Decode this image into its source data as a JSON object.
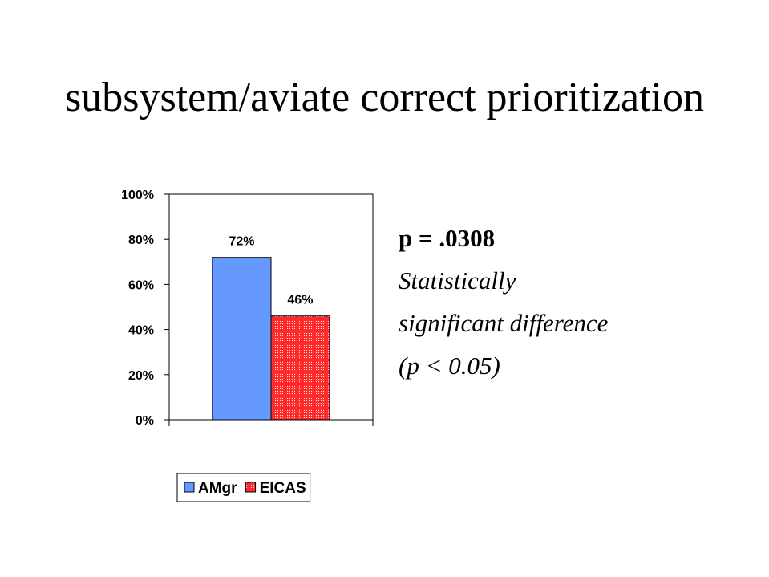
{
  "slide": {
    "title": "subsystem/aviate correct prioritization"
  },
  "note": {
    "pvalue": "p = .0308",
    "line1": "Statistically",
    "line2": "significant difference",
    "line3": "(p < 0.05)"
  },
  "chart_data": {
    "type": "bar",
    "categories": [
      ""
    ],
    "series": [
      {
        "name": "AMgr",
        "values": [
          72
        ],
        "label": "72%",
        "color": "#6699ff",
        "pattern": "solid"
      },
      {
        "name": "EICAS",
        "values": [
          46
        ],
        "label": "46%",
        "color": "#ff2a2a",
        "pattern": "dotted"
      }
    ],
    "ylim": [
      0,
      100
    ],
    "yticks": [
      0,
      20,
      40,
      60,
      80,
      100
    ],
    "ytick_labels": [
      "0%",
      "20%",
      "40%",
      "60%",
      "80%",
      "100%"
    ],
    "legend_position": "bottom",
    "grid": false
  }
}
